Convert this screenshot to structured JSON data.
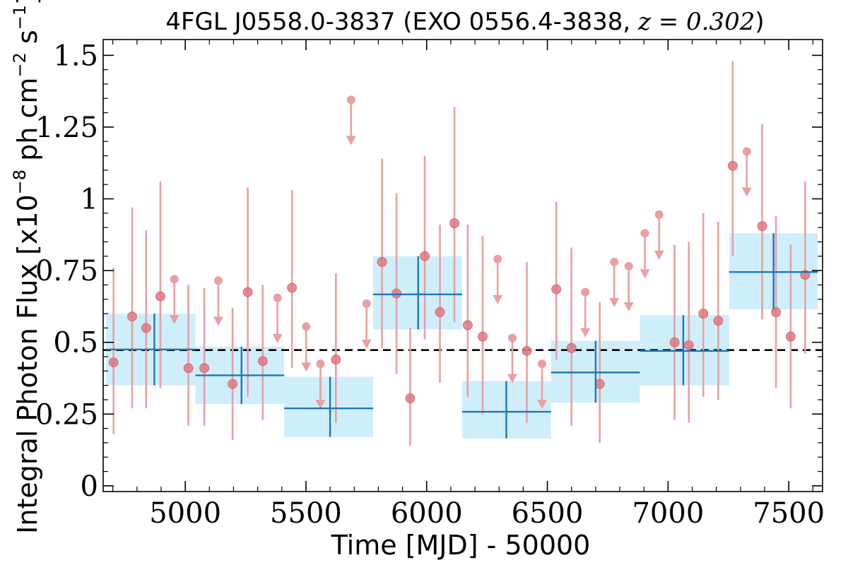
{
  "chart_data": {
    "type": "scatter",
    "title": {
      "text": "4FGL J0558.0-3837 (EXO 0556.4-3838, ",
      "math": "z = 0.302",
      "close": ")"
    },
    "xlabel": "Time [MJD] - 50000",
    "ylabel": {
      "main": "Integral Photon Flux [x10",
      "exp1": "−8",
      "mid": " ph cm",
      "exp2": "−2",
      "mid2": " s",
      "exp3": "−1",
      "close": "]"
    },
    "xlim": [
      4660,
      7640
    ],
    "ylim": [
      -0.02,
      1.555
    ],
    "xticks": [
      5000,
      5500,
      6000,
      6500,
      7000,
      7500
    ],
    "yticks": [
      0,
      0.25,
      0.5,
      0.75,
      1,
      1.25,
      1.5
    ],
    "ytick_labels": [
      "0",
      "0.25",
      "0.5",
      "0.75",
      "1",
      "1.25",
      "1.5"
    ],
    "mean_flux": 0.473,
    "colors": {
      "points": "#e0787c",
      "error_bars": "#e8a0a2",
      "blocks_fill": "#cfeefc",
      "blocks_line": "#1f77b4",
      "mean_line": "#000000"
    },
    "detections": [
      {
        "x": 4703,
        "y": 0.43,
        "lo": 0.18,
        "hi": 0.76
      },
      {
        "x": 4780,
        "y": 0.59,
        "lo": 0.27,
        "hi": 0.97
      },
      {
        "x": 4838,
        "y": 0.55,
        "lo": 0.27,
        "hi": 0.89
      },
      {
        "x": 4897,
        "y": 0.66,
        "lo": 0.34,
        "hi": 1.06
      },
      {
        "x": 5013,
        "y": 0.41,
        "lo": 0.21,
        "hi": 0.7
      },
      {
        "x": 5079,
        "y": 0.41,
        "lo": 0.21,
        "hi": 0.69
      },
      {
        "x": 5196,
        "y": 0.355,
        "lo": 0.16,
        "hi": 0.62
      },
      {
        "x": 5259,
        "y": 0.675,
        "lo": 0.31,
        "hi": 1.04
      },
      {
        "x": 5321,
        "y": 0.435,
        "lo": 0.23,
        "hi": 0.7
      },
      {
        "x": 5442,
        "y": 0.69,
        "lo": 0.41,
        "hi": 1.03
      },
      {
        "x": 5624,
        "y": 0.44,
        "lo": 0.22,
        "hi": 0.74
      },
      {
        "x": 5815,
        "y": 0.78,
        "lo": 0.48,
        "hi": 1.14
      },
      {
        "x": 5875,
        "y": 0.67,
        "lo": 0.39,
        "hi": 1.02
      },
      {
        "x": 5932,
        "y": 0.305,
        "lo": 0.14,
        "hi": 0.55
      },
      {
        "x": 5992,
        "y": 0.8,
        "lo": 0.51,
        "hi": 1.15
      },
      {
        "x": 6055,
        "y": 0.605,
        "lo": 0.36,
        "hi": 0.91
      },
      {
        "x": 6115,
        "y": 0.915,
        "lo": 0.57,
        "hi": 1.32
      },
      {
        "x": 6170,
        "y": 0.56,
        "lo": 0.31,
        "hi": 0.91
      },
      {
        "x": 6232,
        "y": 0.52,
        "lo": 0.25,
        "hi": 0.87
      },
      {
        "x": 6415,
        "y": 0.47,
        "lo": 0.22,
        "hi": 0.78
      },
      {
        "x": 6537,
        "y": 0.685,
        "lo": 0.44,
        "hi": 0.99
      },
      {
        "x": 6600,
        "y": 0.48,
        "lo": 0.21,
        "hi": 0.83
      },
      {
        "x": 6717,
        "y": 0.355,
        "lo": 0.15,
        "hi": 0.64
      },
      {
        "x": 7027,
        "y": 0.5,
        "lo": 0.23,
        "hi": 0.84
      },
      {
        "x": 7086,
        "y": 0.49,
        "lo": 0.22,
        "hi": 0.85
      },
      {
        "x": 7146,
        "y": 0.6,
        "lo": 0.31,
        "hi": 0.95
      },
      {
        "x": 7208,
        "y": 0.575,
        "lo": 0.3,
        "hi": 0.92
      },
      {
        "x": 7268,
        "y": 1.115,
        "lo": 0.8,
        "hi": 1.48
      },
      {
        "x": 7390,
        "y": 0.905,
        "lo": 0.58,
        "hi": 1.26
      },
      {
        "x": 7447,
        "y": 0.605,
        "lo": 0.34,
        "hi": 0.94
      },
      {
        "x": 7508,
        "y": 0.52,
        "lo": 0.27,
        "hi": 0.84
      },
      {
        "x": 7568,
        "y": 0.735,
        "lo": 0.46,
        "hi": 1.06
      }
    ],
    "upper_limits": [
      {
        "x": 4955,
        "y": 0.72
      },
      {
        "x": 5137,
        "y": 0.715
      },
      {
        "x": 5382,
        "y": 0.655
      },
      {
        "x": 5501,
        "y": 0.555
      },
      {
        "x": 5560,
        "y": 0.425
      },
      {
        "x": 5751,
        "y": 0.635
      },
      {
        "x": 5687,
        "y": 1.345
      },
      {
        "x": 6294,
        "y": 0.79
      },
      {
        "x": 6355,
        "y": 0.515
      },
      {
        "x": 6478,
        "y": 0.425
      },
      {
        "x": 6657,
        "y": 0.675
      },
      {
        "x": 6777,
        "y": 0.78
      },
      {
        "x": 6837,
        "y": 0.765
      },
      {
        "x": 6904,
        "y": 0.88
      },
      {
        "x": 6963,
        "y": 0.945
      },
      {
        "x": 7326,
        "y": 1.165
      }
    ],
    "blocks": [
      {
        "x0": 4672,
        "x1": 5042,
        "xc": 4872,
        "y": 0.475,
        "lo": 0.35,
        "hi": 0.6
      },
      {
        "x0": 5042,
        "x1": 5410,
        "xc": 5233,
        "y": 0.385,
        "lo": 0.285,
        "hi": 0.485
      },
      {
        "x0": 5410,
        "x1": 5778,
        "xc": 5600,
        "y": 0.27,
        "lo": 0.17,
        "hi": 0.38
      },
      {
        "x0": 5778,
        "x1": 6147,
        "xc": 5965,
        "y": 0.667,
        "lo": 0.545,
        "hi": 0.8
      },
      {
        "x0": 6147,
        "x1": 6515,
        "xc": 6330,
        "y": 0.258,
        "lo": 0.165,
        "hi": 0.365
      },
      {
        "x0": 6515,
        "x1": 6883,
        "xc": 6700,
        "y": 0.395,
        "lo": 0.29,
        "hi": 0.505
      },
      {
        "x0": 6883,
        "x1": 7253,
        "xc": 7063,
        "y": 0.47,
        "lo": 0.35,
        "hi": 0.595
      },
      {
        "x0": 7253,
        "x1": 7620,
        "xc": 7437,
        "y": 0.745,
        "lo": 0.615,
        "hi": 0.88
      }
    ]
  }
}
